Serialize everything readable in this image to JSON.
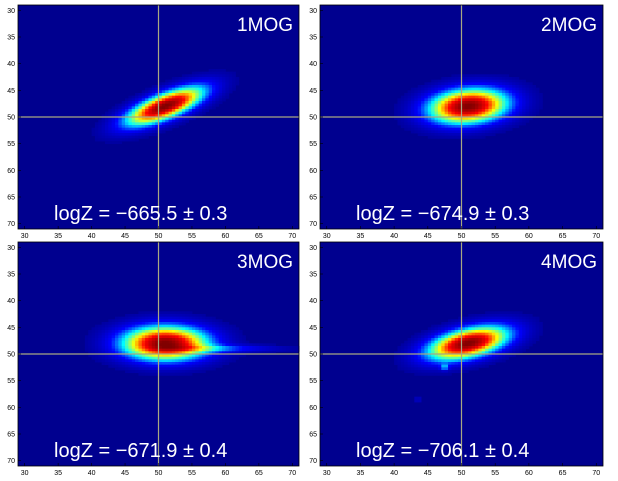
{
  "chart_data": [
    {
      "type": "heatmap",
      "title": "1MOG",
      "annotation": "logZ = −665.5 ± 0.3",
      "xlim": [
        29,
        71
      ],
      "ylim": [
        29,
        71
      ],
      "x_ticks": [
        "30",
        "35",
        "40",
        "45",
        "50",
        "55",
        "60",
        "65",
        "70"
      ],
      "y_ticks": [
        "30",
        "35",
        "40",
        "45",
        "50",
        "55",
        "60",
        "65",
        "70"
      ],
      "crosshair": {
        "x": 50,
        "y": 50
      },
      "colormap": [
        "#00008f",
        "#0000ff",
        "#00ffff",
        "#ffff00",
        "#ff0000",
        "#800000"
      ],
      "background_color": "#00008f",
      "crosshair_color": "#a8a882",
      "blobs": [
        {
          "cx": 51,
          "cy": 48,
          "sx": 4.6,
          "sy": 1.6,
          "angle_deg": -28,
          "amp": 1.0
        }
      ]
    },
    {
      "type": "heatmap",
      "title": "2MOG",
      "annotation": "logZ = −674.9 ± 0.3",
      "xlim": [
        29,
        71
      ],
      "ylim": [
        29,
        71
      ],
      "x_ticks": [
        "30",
        "35",
        "40",
        "45",
        "50",
        "55",
        "60",
        "65",
        "70"
      ],
      "y_ticks": [
        "30",
        "35",
        "40",
        "45",
        "50",
        "55",
        "60",
        "65",
        "70"
      ],
      "crosshair": {
        "x": 50,
        "y": 50
      },
      "colormap": [
        "#00008f",
        "#0000ff",
        "#00ffff",
        "#ffff00",
        "#ff0000",
        "#800000"
      ],
      "background_color": "#00008f",
      "crosshair_color": "#a8a882",
      "blobs": [
        {
          "cx": 51,
          "cy": 48,
          "sx": 4.2,
          "sy": 2.3,
          "angle_deg": -8,
          "amp": 1.0
        }
      ]
    },
    {
      "type": "heatmap",
      "title": "3MOG",
      "annotation": "logZ = −671.9 ± 0.4",
      "xlim": [
        29,
        71
      ],
      "ylim": [
        29,
        71
      ],
      "x_ticks": [
        "30",
        "35",
        "40",
        "45",
        "50",
        "55",
        "60",
        "65",
        "70"
      ],
      "y_ticks": [
        "30",
        "35",
        "40",
        "45",
        "50",
        "55",
        "60",
        "65",
        "70"
      ],
      "crosshair": {
        "x": 50,
        "y": 50
      },
      "colormap": [
        "#00008f",
        "#0000ff",
        "#00ffff",
        "#ffff00",
        "#ff0000",
        "#800000"
      ],
      "background_color": "#00008f",
      "crosshair_color": "#a8a882",
      "blobs": [
        {
          "cx": 51,
          "cy": 48,
          "sx": 4.6,
          "sy": 2.3,
          "angle_deg": 0,
          "amp": 1.0
        },
        {
          "cx": 60,
          "cy": 49,
          "sx": 6.0,
          "sy": 0.5,
          "angle_deg": 0,
          "amp": 0.2
        }
      ]
    },
    {
      "type": "heatmap",
      "title": "4MOG",
      "annotation": "logZ = −706.1 ± 0.4",
      "xlim": [
        29,
        71
      ],
      "ylim": [
        29,
        71
      ],
      "x_ticks": [
        "30",
        "35",
        "40",
        "45",
        "50",
        "55",
        "60",
        "65",
        "70"
      ],
      "y_ticks": [
        "30",
        "35",
        "40",
        "45",
        "50",
        "55",
        "60",
        "65",
        "70"
      ],
      "crosshair": {
        "x": 50,
        "y": 50
      },
      "colormap": [
        "#00008f",
        "#0000ff",
        "#00ffff",
        "#ffff00",
        "#ff0000",
        "#800000"
      ],
      "background_color": "#00008f",
      "crosshair_color": "#a8a882",
      "blobs": [
        {
          "cx": 51,
          "cy": 48,
          "sx": 4.4,
          "sy": 1.9,
          "angle_deg": -18,
          "amp": 1.0
        },
        {
          "cx": 47.5,
          "cy": 52.5,
          "sx": 0.4,
          "sy": 0.4,
          "angle_deg": 0,
          "amp": 0.25
        },
        {
          "cx": 43.5,
          "cy": 58.5,
          "sx": 0.35,
          "sy": 0.35,
          "angle_deg": 0,
          "amp": 0.12
        }
      ]
    }
  ]
}
